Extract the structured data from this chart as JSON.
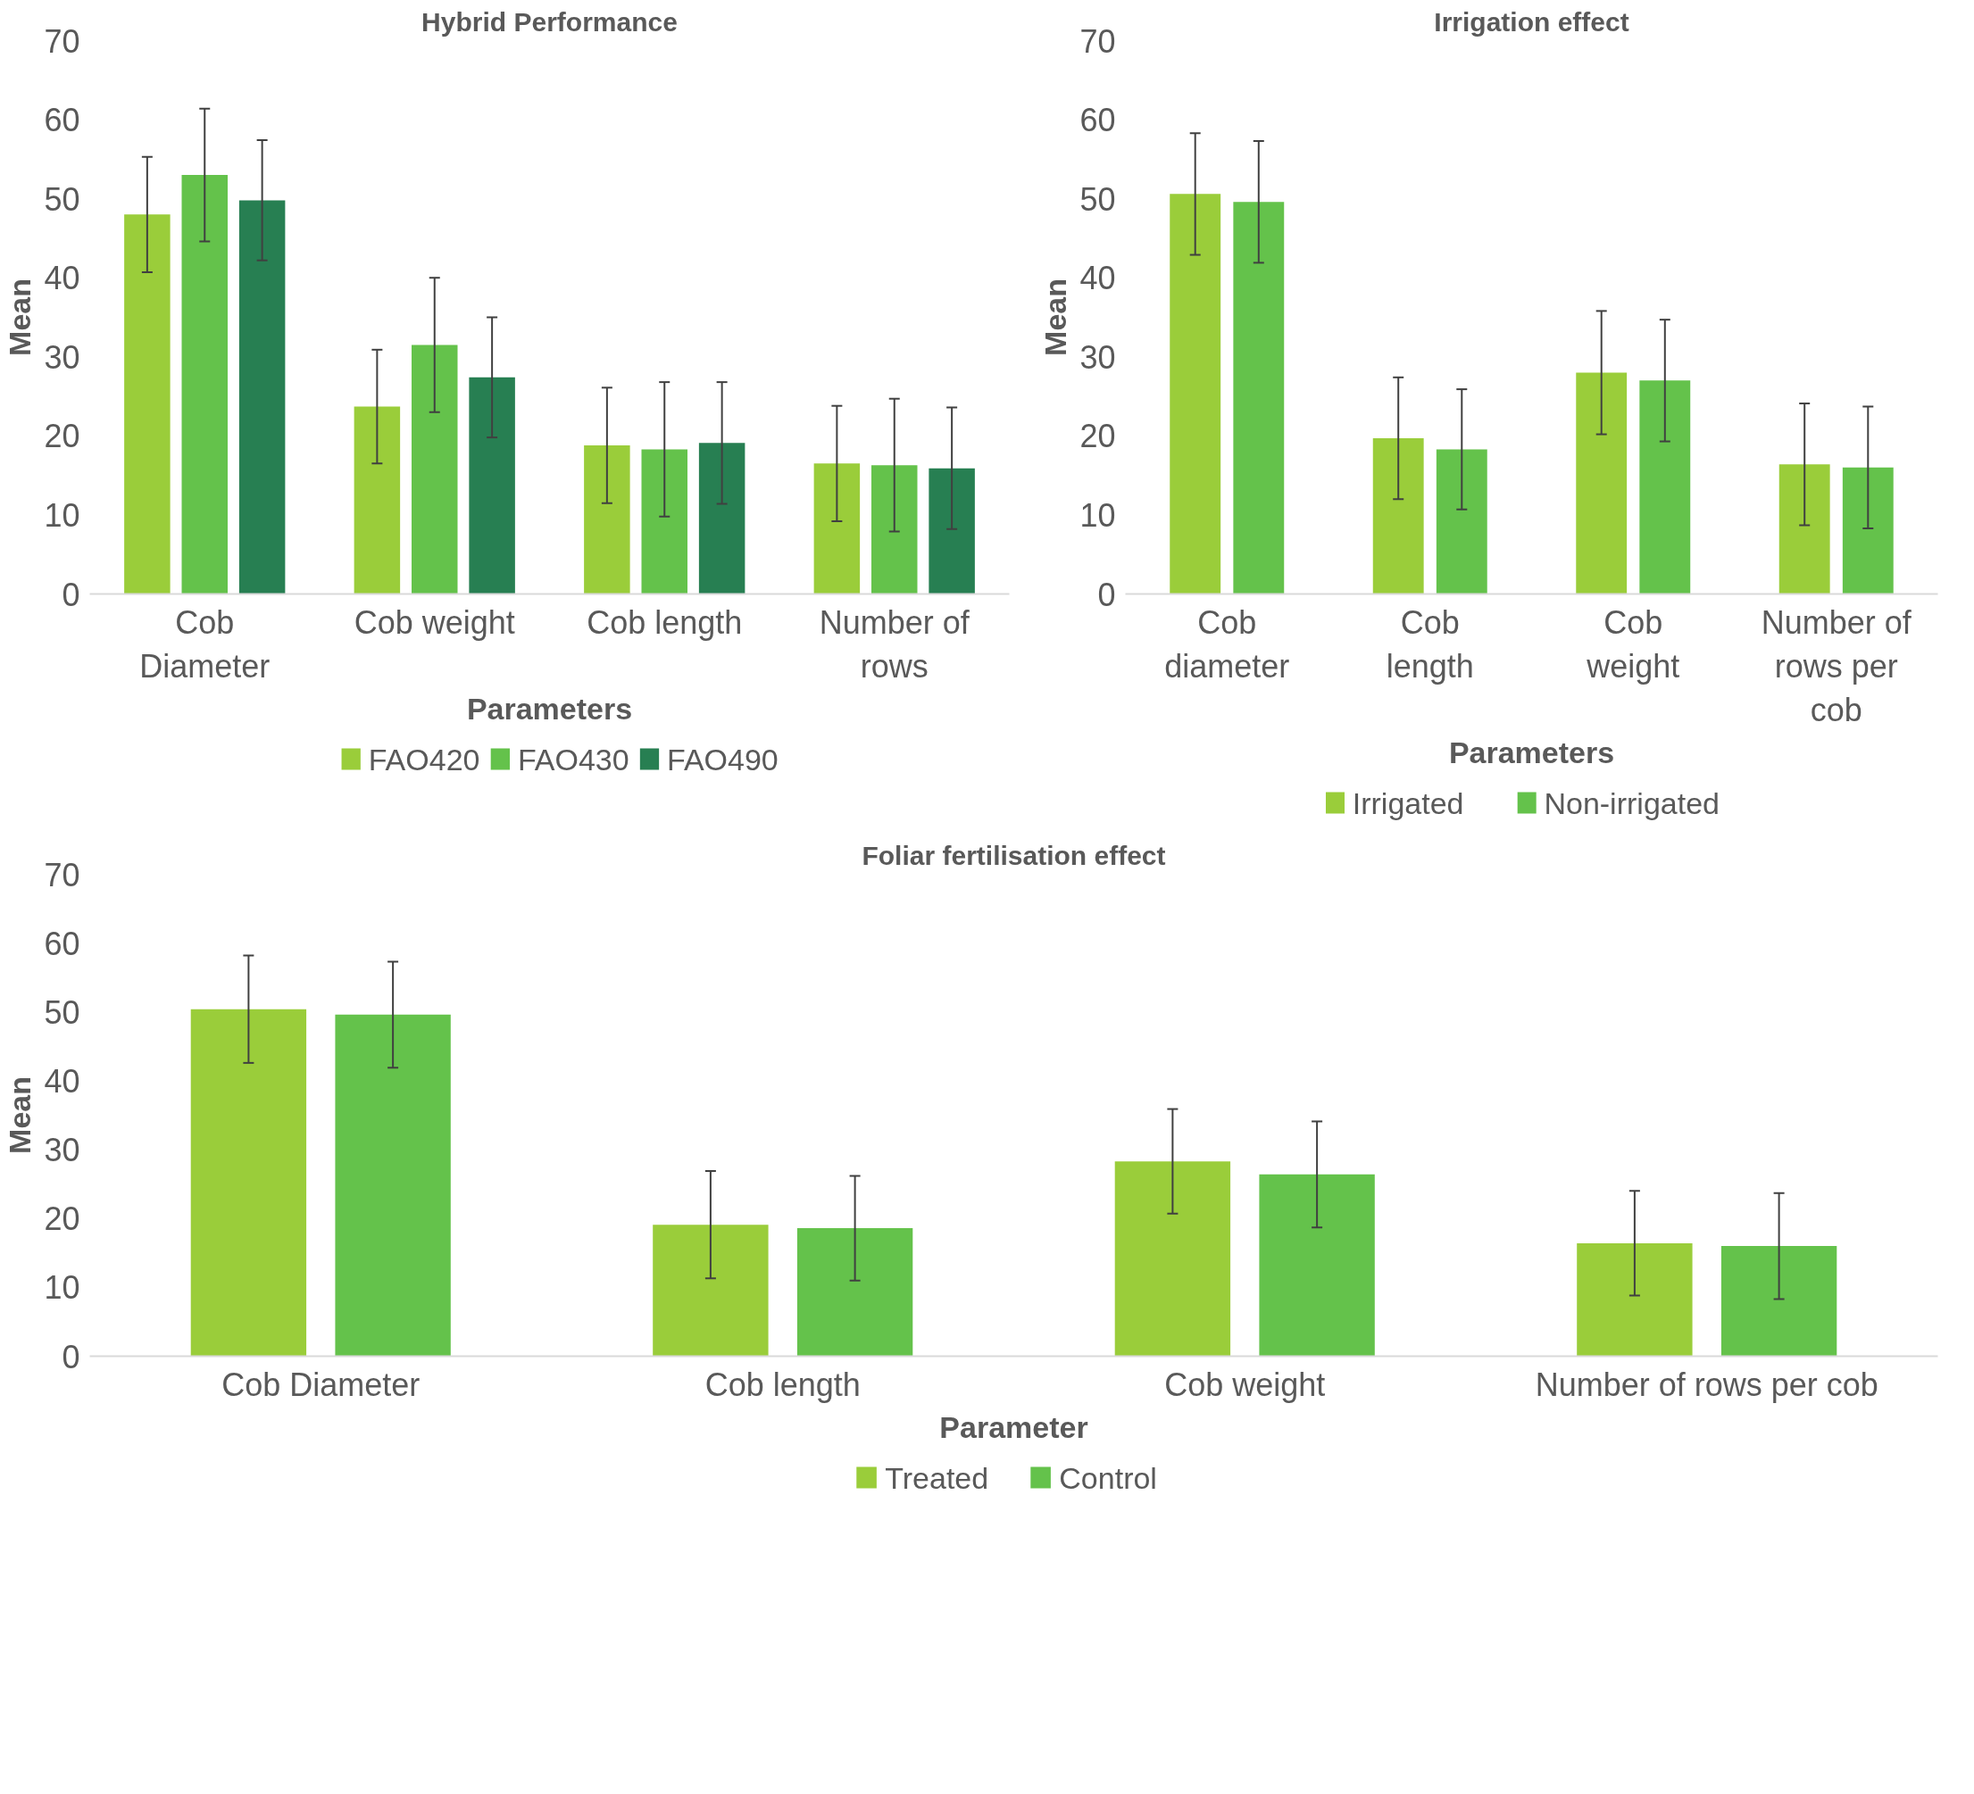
{
  "chart_data": [
    {
      "type": "bar",
      "title": "Hybrid Performance",
      "xlabel": "Parameters",
      "ylabel": "Mean",
      "categories": [
        "Cob Diameter",
        "Cob weight",
        "Cob length",
        "Number of rows"
      ],
      "ylim": [
        0,
        70
      ],
      "yticks": [
        0,
        10,
        20,
        30,
        40,
        50,
        60,
        70
      ],
      "grid": false,
      "legend": "bottom",
      "series": [
        {
          "name": "FAO420",
          "color": "#9acd3a",
          "values": [
            48.0,
            23.7,
            18.8,
            16.5
          ],
          "errors": [
            7.3,
            7.2,
            7.3,
            7.3
          ]
        },
        {
          "name": "FAO430",
          "color": "#64c24b",
          "values": [
            53.0,
            31.5,
            18.3,
            16.3
          ],
          "errors": [
            8.4,
            8.5,
            8.5,
            8.4
          ]
        },
        {
          "name": "FAO490",
          "color": "#277f52",
          "values": [
            49.8,
            27.4,
            19.1,
            15.9
          ],
          "errors": [
            7.6,
            7.6,
            7.7,
            7.7
          ]
        }
      ]
    },
    {
      "type": "bar",
      "title": "Irrigation effect",
      "xlabel": "Parameters",
      "ylabel": "Mean",
      "categories": [
        "Cob diameter",
        "Cob length",
        "Cob weight",
        "Number of rows per cob"
      ],
      "ylim": [
        0,
        70
      ],
      "yticks": [
        0,
        10,
        20,
        30,
        40,
        50,
        60,
        70
      ],
      "grid": false,
      "legend": "bottom",
      "series": [
        {
          "name": "Irrigated",
          "color": "#9acd3a",
          "values": [
            50.6,
            19.7,
            28.0,
            16.4
          ],
          "errors": [
            7.7,
            7.7,
            7.8,
            7.7
          ]
        },
        {
          "name": "Non-irrigated",
          "color": "#64c24b",
          "values": [
            49.6,
            18.3,
            27.0,
            16.0
          ],
          "errors": [
            7.7,
            7.6,
            7.7,
            7.7
          ]
        }
      ]
    },
    {
      "type": "bar",
      "title": "Foliar fertilisation effect",
      "xlabel": "Parameter",
      "ylabel": "Mean",
      "categories": [
        "Cob Diameter",
        "Cob length",
        "Cob weight",
        "Number of rows per cob"
      ],
      "ylim": [
        0,
        70
      ],
      "yticks": [
        0,
        10,
        20,
        30,
        40,
        50,
        60,
        70
      ],
      "grid": false,
      "legend": "bottom",
      "series": [
        {
          "name": "Treated",
          "color": "#9acd3a",
          "values": [
            50.4,
            19.1,
            28.3,
            16.4
          ],
          "errors": [
            7.8,
            7.8,
            7.6,
            7.6
          ]
        },
        {
          "name": "Control",
          "color": "#64c24b",
          "values": [
            49.6,
            18.6,
            26.4,
            16.0
          ],
          "errors": [
            7.7,
            7.6,
            7.7,
            7.7
          ]
        }
      ]
    }
  ]
}
